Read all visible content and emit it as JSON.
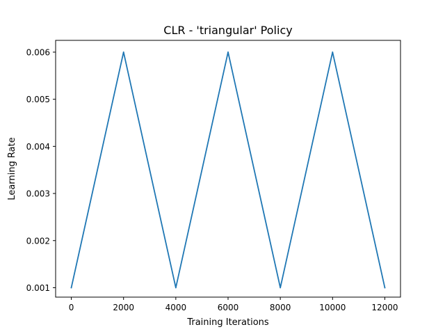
{
  "chart_data": {
    "type": "line",
    "title": "CLR - 'triangular' Policy",
    "xlabel": "Training Iterations",
    "ylabel": "Learning Rate",
    "xlim": [
      -600,
      12600
    ],
    "ylim": [
      0.0008,
      0.00625
    ],
    "xticks": [
      0,
      2000,
      4000,
      6000,
      8000,
      10000,
      12000
    ],
    "yticks": [
      0.001,
      0.002,
      0.003,
      0.004,
      0.005,
      0.006
    ],
    "grid": false,
    "series": [
      {
        "color": "#1f77b4",
        "x": [
          0,
          2000,
          4000,
          6000,
          8000,
          10000,
          12000
        ],
        "y": [
          0.001,
          0.006,
          0.001,
          0.006,
          0.001,
          0.006,
          0.001
        ]
      }
    ]
  }
}
